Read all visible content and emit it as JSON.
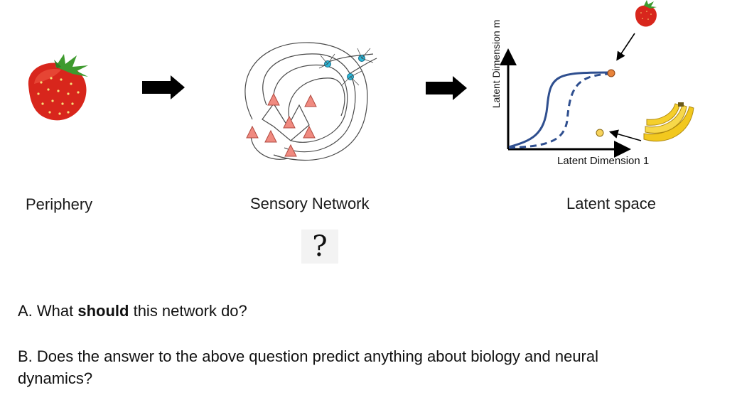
{
  "labels": {
    "periphery": "Periphery",
    "sensory_network": "Sensory Network",
    "latent_space": "Latent space"
  },
  "plot": {
    "xlabel": "Latent Dimension 1",
    "ylabel": "Latent Dimension m"
  },
  "question_mark": "?",
  "questions": {
    "a_prefix": "A. What ",
    "a_bold": "should",
    "a_suffix": " this network do?",
    "b_line1": "B. Does the answer to the above question predict anything about biology and neural",
    "b_line2": "dynamics?"
  },
  "colors": {
    "curve": "#2f4f8f",
    "strawberry_point": "#e8833a",
    "banana_point": "#f7d35c",
    "neuron_fill": "#f08a80",
    "interneuron_fill": "#29b6d8",
    "arrow": "#000000"
  },
  "icons": [
    "strawberry-image",
    "banana-image",
    "right-arrow-icon",
    "network-diagram"
  ]
}
